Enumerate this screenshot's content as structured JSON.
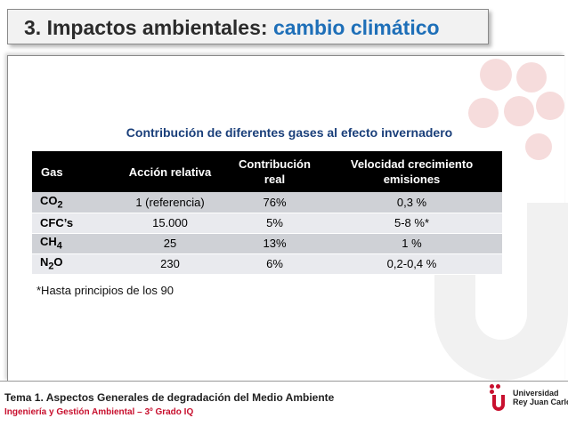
{
  "slide": {
    "title_main": "3. Impactos ambientales: ",
    "title_accent": "cambio climático",
    "title_accent_color": "#1e6fb8"
  },
  "table": {
    "caption": "Contribución de diferentes gases al efecto invernadero",
    "headers": {
      "gas": "Gas",
      "accion": "Acción relativa",
      "contribucion_line1": "Contribución",
      "contribucion_line2": "real",
      "velocidad_line1": "Velocidad crecimiento",
      "velocidad_line2": "emisiones"
    },
    "rows": [
      {
        "gas": "CO",
        "sub": "2",
        "accion": "1 (referencia)",
        "contribucion": "76%",
        "velocidad": "0,3 %"
      },
      {
        "gas": "CFC’s",
        "sub": "",
        "accion": "15.000",
        "contribucion": "5%",
        "velocidad": "5-8 %*"
      },
      {
        "gas": "CH",
        "sub": "4",
        "accion": "25",
        "contribucion": "13%",
        "velocidad": "1 %"
      },
      {
        "gas": "N",
        "sub": "2",
        "gas_suffix": "O",
        "accion": "230",
        "contribucion": "6%",
        "velocidad": "0,2-0,4 %"
      }
    ],
    "footnote": "*Hasta principios de los 90"
  },
  "footer": {
    "title": "Tema 1. Aspectos Generales de degradación del Medio Ambiente",
    "subtitle": "Ingeniería y Gestión Ambiental – 3º Grado IQ",
    "subtitle_color": "#c8102e"
  },
  "logo": {
    "line1": "Universidad",
    "line2": "Rey Juan Carlos",
    "icon": "urjc-logo-icon",
    "color": "#c8102e"
  }
}
